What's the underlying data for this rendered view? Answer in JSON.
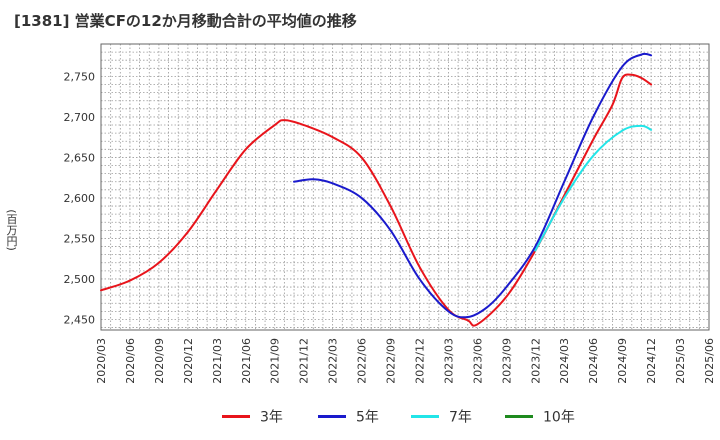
{
  "chart_data": {
    "type": "line",
    "title": "[1381]  営業CFの12か月移動合計の平均値の推移",
    "ylabel": "(百万円)",
    "ylim": [
      2437,
      2790
    ],
    "yticks": [
      2450,
      2500,
      2550,
      2600,
      2650,
      2700,
      2750
    ],
    "ytick_labels": [
      "2,450",
      "2,500",
      "2,550",
      "2,600",
      "2,650",
      "2,700",
      "2,750"
    ],
    "x_categories": [
      "2020/03",
      "2020/06",
      "2020/09",
      "2020/12",
      "2021/03",
      "2021/06",
      "2021/09",
      "2021/12",
      "2022/03",
      "2022/06",
      "2022/09",
      "2022/12",
      "2023/03",
      "2023/06",
      "2023/09",
      "2023/12",
      "2024/03",
      "2024/06",
      "2024/09",
      "2024/12",
      "2025/03",
      "2025/06"
    ],
    "grid": true,
    "legend_position": "bottom",
    "series": [
      {
        "name": "3年",
        "color": "#e8141b",
        "x": [
          "2020/03",
          "2020/06",
          "2020/09",
          "2020/12",
          "2021/03",
          "2021/06",
          "2021/09",
          "2021/10",
          "2021/12",
          "2022/03",
          "2022/06",
          "2022/09",
          "2022/12",
          "2023/03",
          "2023/05",
          "2023/06",
          "2023/09",
          "2023/12",
          "2024/03",
          "2024/06",
          "2024/08",
          "2024/09",
          "2024/10",
          "2024/11",
          "2024/12"
        ],
        "values": [
          2486,
          2498,
          2520,
          2558,
          2610,
          2660,
          2690,
          2696,
          2690,
          2675,
          2650,
          2590,
          2515,
          2462,
          2449,
          2444,
          2478,
          2535,
          2603,
          2672,
          2715,
          2748,
          2752,
          2748,
          2740
        ]
      },
      {
        "name": "5年",
        "color": "#1a1acc",
        "x": [
          "2021/11",
          "2022/01",
          "2022/03",
          "2022/06",
          "2022/09",
          "2022/12",
          "2023/03",
          "2023/05",
          "2023/07",
          "2023/09",
          "2023/12",
          "2024/03",
          "2024/06",
          "2024/09",
          "2024/11",
          "2024/12"
        ],
        "values": [
          2620,
          2623,
          2618,
          2600,
          2560,
          2500,
          2460,
          2453,
          2465,
          2490,
          2540,
          2620,
          2700,
          2762,
          2777,
          2776
        ]
      },
      {
        "name": "7年",
        "color": "#22e5e8",
        "x": [
          "2023/12",
          "2024/03",
          "2024/06",
          "2024/09",
          "2024/11",
          "2024/12"
        ],
        "values": [
          2535,
          2600,
          2652,
          2683,
          2689,
          2684
        ]
      },
      {
        "name": "10年",
        "color": "#1e8a1e",
        "x": [],
        "values": []
      }
    ]
  }
}
